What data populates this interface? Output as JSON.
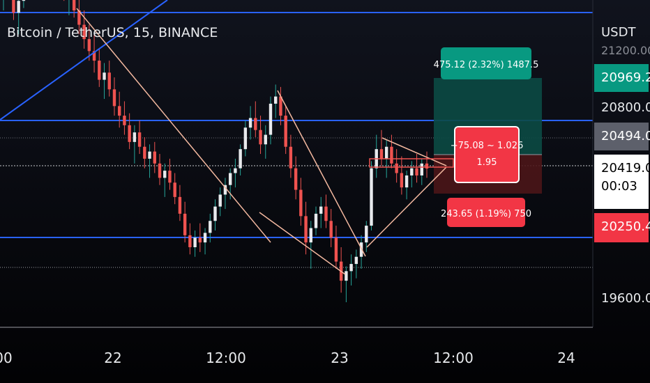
{
  "title": "Bitcoin / TetherUS, 15, BINANCE",
  "currency": "USDT",
  "colors": {
    "up": "#26a69a",
    "down": "#ef5350",
    "up_candle": "#e8eaed",
    "blue_line": "#2962ff",
    "trendline": "#f4b9a0",
    "target_zone": "#0b4a44",
    "stop_zone": "#4b1518",
    "target_badge": "#089981",
    "stop_badge": "#f23645",
    "current_price_badge": "#ffffff",
    "gray_badge": "#5d606b"
  },
  "x_axis_labels": [
    "00",
    "22",
    "12:00",
    "23",
    "12:00",
    "24"
  ],
  "price_labels": {
    "top_partial": "21200.00",
    "target": "20969.20",
    "level_20800": "20800.00",
    "entry": "20494.08",
    "current": "20419.00",
    "countdown": "00:03",
    "stop": "20250.43",
    "level_19600": "19600.00"
  },
  "position": {
    "target_badge": "475.12 (2.32%) 1487.5",
    "middle_badge_line1": "−75.08 ~ 1.026",
    "middle_badge_line2": "1.95",
    "stop_badge": "243.65 (1.19%) 750"
  },
  "chart_data": {
    "type": "candlestick",
    "title": "Bitcoin / TetherUS, 15, BINANCE",
    "y_unit": "USDT",
    "x_ticks": [
      "00",
      "22",
      "12:00",
      "23",
      "12:00",
      "24"
    ],
    "horizontal_levels": [
      21280,
      20800,
      20494.08,
      20419,
      20250,
      19930
    ],
    "long_position": {
      "entry": 20494.08,
      "target": 20969.2,
      "stop": 20250.43,
      "reward": 475.12,
      "reward_pct": 2.32,
      "risk": 243.65,
      "risk_pct": 1.19,
      "risk_reward": 1.95
    },
    "candles": [
      [
        21160,
        21240,
        21080,
        21210
      ],
      [
        21210,
        21290,
        21140,
        21180
      ],
      [
        21180,
        21250,
        21040,
        21070
      ],
      [
        21070,
        21150,
        20980,
        21120
      ],
      [
        21120,
        21330,
        21090,
        21290
      ],
      [
        21290,
        21420,
        21230,
        21380
      ],
      [
        21380,
        21460,
        21290,
        21340
      ],
      [
        21340,
        21400,
        21180,
        21230
      ],
      [
        21230,
        21310,
        21140,
        21280
      ],
      [
        21280,
        21350,
        21210,
        21250
      ],
      [
        21250,
        21330,
        21180,
        21300
      ],
      [
        21300,
        21370,
        21220,
        21240
      ],
      [
        21240,
        21280,
        21120,
        21160
      ],
      [
        21160,
        21230,
        21060,
        21200
      ],
      [
        21200,
        21260,
        21050,
        21080
      ],
      [
        21080,
        21160,
        20980,
        21020
      ],
      [
        21020,
        21080,
        20920,
        20960
      ],
      [
        20960,
        21020,
        20870,
        20910
      ],
      [
        20910,
        20980,
        20820,
        20870
      ],
      [
        20870,
        20920,
        20760,
        20790
      ],
      [
        20790,
        20860,
        20710,
        20820
      ],
      [
        20820,
        20870,
        20720,
        20750
      ],
      [
        20750,
        20800,
        20640,
        20680
      ],
      [
        20680,
        20740,
        20590,
        20640
      ],
      [
        20640,
        20700,
        20560,
        20600
      ],
      [
        20600,
        20650,
        20500,
        20530
      ],
      [
        20530,
        20600,
        20440,
        20570
      ],
      [
        20570,
        20620,
        20480,
        20510
      ],
      [
        20510,
        20550,
        20420,
        20460
      ],
      [
        20460,
        20520,
        20380,
        20490
      ],
      [
        20490,
        20530,
        20400,
        20440
      ],
      [
        20440,
        20480,
        20350,
        20380
      ],
      [
        20380,
        20440,
        20300,
        20410
      ],
      [
        20410,
        20460,
        20330,
        20360
      ],
      [
        20360,
        20400,
        20270,
        20300
      ],
      [
        20300,
        20350,
        20200,
        20230
      ],
      [
        20230,
        20280,
        20110,
        20140
      ],
      [
        20140,
        20190,
        20060,
        20090
      ],
      [
        20090,
        20160,
        20050,
        20130
      ],
      [
        20130,
        20190,
        20070,
        20110
      ],
      [
        20110,
        20170,
        20060,
        20150
      ],
      [
        20150,
        20230,
        20110,
        20200
      ],
      [
        20200,
        20290,
        20160,
        20260
      ],
      [
        20260,
        20340,
        20220,
        20310
      ],
      [
        20310,
        20380,
        20250,
        20350
      ],
      [
        20350,
        20420,
        20290,
        20400
      ],
      [
        20400,
        20460,
        20340,
        20420
      ],
      [
        20420,
        20520,
        20390,
        20500
      ],
      [
        20500,
        20620,
        20470,
        20590
      ],
      [
        20590,
        20680,
        20540,
        20630
      ],
      [
        20630,
        20700,
        20550,
        20580
      ],
      [
        20580,
        20640,
        20480,
        20520
      ],
      [
        20520,
        20600,
        20460,
        20560
      ],
      [
        20560,
        20720,
        20520,
        20690
      ],
      [
        20690,
        20770,
        20630,
        20720
      ],
      [
        20720,
        20760,
        20600,
        20640
      ],
      [
        20640,
        20680,
        20480,
        20510
      ],
      [
        20510,
        20560,
        20380,
        20420
      ],
      [
        20420,
        20470,
        20290,
        20330
      ],
      [
        20330,
        20380,
        20180,
        20220
      ],
      [
        20220,
        20280,
        20060,
        20110
      ],
      [
        20110,
        20200,
        20000,
        20170
      ],
      [
        20170,
        20260,
        20140,
        20230
      ],
      [
        20230,
        20300,
        20170,
        20260
      ],
      [
        20260,
        20310,
        20170,
        20200
      ],
      [
        20200,
        20250,
        20090,
        20130
      ],
      [
        20130,
        20180,
        20000,
        20030
      ],
      [
        20030,
        20090,
        19900,
        19950
      ],
      [
        19950,
        20010,
        19860,
        19990
      ],
      [
        19990,
        20060,
        19930,
        20020
      ],
      [
        20020,
        20080,
        19960,
        20050
      ],
      [
        20050,
        20140,
        20000,
        20110
      ],
      [
        20110,
        20200,
        20070,
        20180
      ],
      [
        20180,
        20450,
        20160,
        20420
      ],
      [
        20420,
        20560,
        20380,
        20500
      ],
      [
        20500,
        20580,
        20430,
        20460
      ],
      [
        20460,
        20540,
        20380,
        20510
      ],
      [
        20510,
        20560,
        20420,
        20440
      ],
      [
        20440,
        20500,
        20360,
        20400
      ],
      [
        20400,
        20470,
        20310,
        20340
      ],
      [
        20340,
        20410,
        20290,
        20390
      ],
      [
        20390,
        20450,
        20340,
        20420
      ],
      [
        20420,
        20480,
        20360,
        20390
      ],
      [
        20390,
        20460,
        20350,
        20440
      ],
      [
        20440,
        20490,
        20380,
        20419
      ]
    ]
  }
}
